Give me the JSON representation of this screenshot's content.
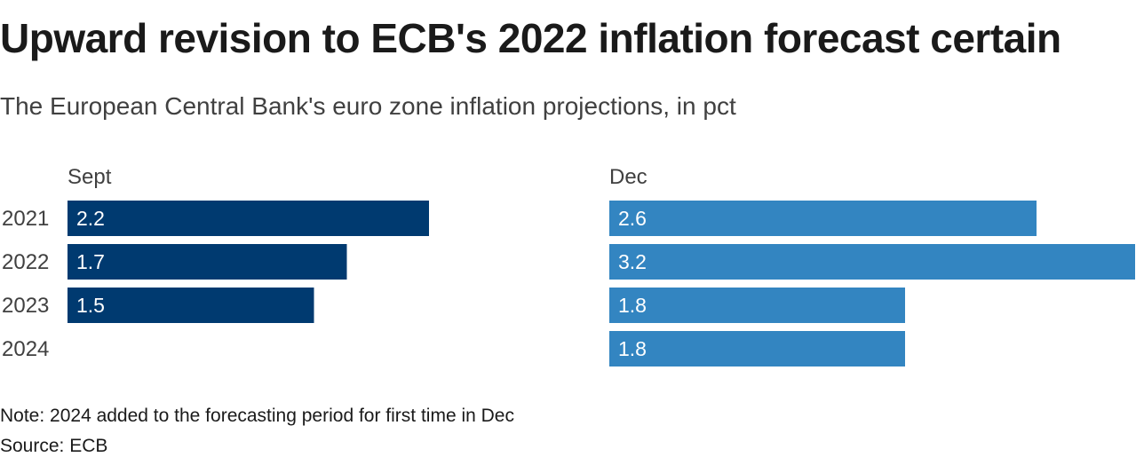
{
  "header": {
    "title": "Upward revision to ECB's 2022 inflation forecast certain",
    "subtitle": "The European Central Bank's euro zone inflation projections, in pct"
  },
  "footer": {
    "note": "Note: 2024 added to the forecasting period for first time in Dec",
    "source": "Source: ECB"
  },
  "chart_data": {
    "type": "bar",
    "orientation": "horizontal",
    "layout": "small-multiples",
    "categories": [
      "2021",
      "2022",
      "2023",
      "2024"
    ],
    "series": [
      {
        "name": "Sept",
        "values": [
          2.2,
          1.7,
          1.5,
          null
        ],
        "labels": [
          "2.2",
          "1.7",
          "1.5",
          ""
        ],
        "color": "#003a70"
      },
      {
        "name": "Dec",
        "values": [
          2.6,
          3.2,
          1.8,
          1.8
        ],
        "labels": [
          "2.6",
          "3.2",
          "1.8",
          "1.8"
        ],
        "color": "#3385c1"
      }
    ],
    "title": "Upward revision to ECB's 2022 inflation forecast certain",
    "xlabel": "",
    "ylabel": "",
    "xlim": [
      0,
      3.2
    ],
    "grid": false,
    "legend": "none"
  }
}
